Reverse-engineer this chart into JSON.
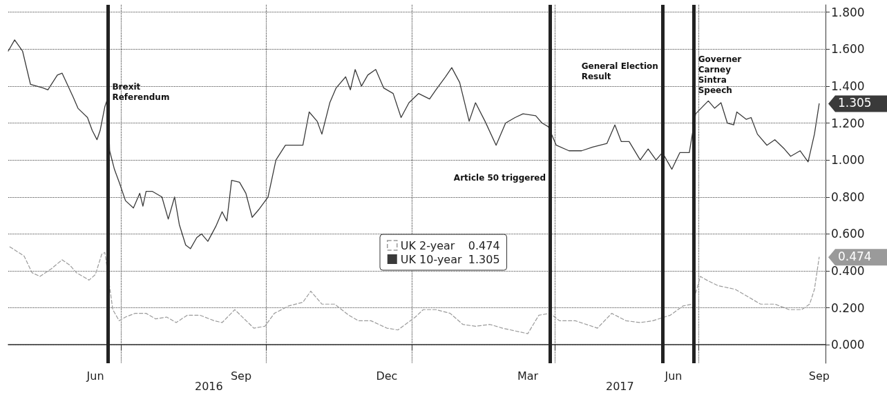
{
  "chart_data": {
    "type": "line",
    "annotations": [
      "2016",
      "2017"
    ],
    "xlim": [
      "2016-04-21",
      "2017-09-19"
    ],
    "xticks": [
      {
        "value": "2016-06-15",
        "label": "Jun"
      },
      {
        "value": "2016-07-01",
        "label": null
      },
      {
        "value": "2016-09-15",
        "label": "Sep"
      },
      {
        "value": "2016-10-01",
        "label": null
      },
      {
        "value": "2016-12-16",
        "label": "Dec"
      },
      {
        "value": "2017-01-01",
        "label": null
      },
      {
        "value": "2017-03-15",
        "label": "Mar"
      },
      {
        "value": "2017-04-01",
        "label": null
      },
      {
        "value": "2017-06-15",
        "label": "Jun"
      },
      {
        "value": "2017-07-01",
        "label": null
      },
      {
        "value": "2017-09-15",
        "label": "Sep"
      }
    ],
    "ylim": [
      -0.1,
      1.84
    ],
    "yticks": [
      {
        "value": 0,
        "label": "0.000"
      },
      {
        "value": 0.2,
        "label": "0.200"
      },
      {
        "value": 0.4,
        "label": "0.400"
      },
      {
        "value": 0.6,
        "label": "0.600"
      },
      {
        "value": 0.8,
        "label": "0.800"
      },
      {
        "value": 1,
        "label": "1.000"
      },
      {
        "value": 1.2,
        "label": "1.200"
      },
      {
        "value": 1.4,
        "label": "1.400"
      },
      {
        "value": 1.6,
        "label": "1.600"
      },
      {
        "value": 1.8,
        "label": "1.800"
      }
    ],
    "grid": true,
    "legend": "center",
    "marker": "none",
    "ref_lines": [
      {
        "axis": "x",
        "value": "2016-06-23",
        "label": "Brexit\nReferendum",
        "color": "#222222"
      },
      {
        "axis": "x",
        "value": "2017-03-29",
        "label": "Article 50 triggered",
        "color": "#222222"
      },
      {
        "axis": "x",
        "value": "2017-06-08",
        "label": "General Election\nResult",
        "color": "#222222"
      },
      {
        "axis": "x",
        "value": "2017-06-28",
        "label": "Governer\nCarney\nSintra\nSpeech",
        "color": "#222222"
      }
    ],
    "series": [
      {
        "name": "UK 2-year",
        "color": "#9a9a9a",
        "line_style": "dashed",
        "x": [
          "2016-04-22",
          "2016-05-01",
          "2016-05-06",
          "2016-05-11",
          "2016-05-18",
          "2016-05-25",
          "2016-05-30",
          "2016-06-03",
          "2016-06-07",
          "2016-06-11",
          "2016-06-15",
          "2016-06-19",
          "2016-06-21",
          "2016-06-26",
          "2016-06-30",
          "2016-07-04",
          "2016-07-10",
          "2016-07-17",
          "2016-07-23",
          "2016-07-30",
          "2016-08-05",
          "2016-08-12",
          "2016-08-20",
          "2016-08-29",
          "2016-09-03",
          "2016-09-11",
          "2016-09-17",
          "2016-09-23",
          "2016-09-30",
          "2016-10-06",
          "2016-10-15",
          "2016-10-24",
          "2016-10-29",
          "2016-11-05",
          "2016-11-13",
          "2016-11-22",
          "2016-11-28",
          "2016-12-06",
          "2016-12-16",
          "2016-12-23",
          "2017-01-03",
          "2017-01-08",
          "2017-01-16",
          "2017-01-25",
          "2017-02-02",
          "2017-02-10",
          "2017-02-19",
          "2017-02-27",
          "2017-03-15",
          "2017-03-22",
          "2017-03-29",
          "2017-04-04",
          "2017-04-14",
          "2017-04-28",
          "2017-05-07",
          "2017-05-16",
          "2017-05-25",
          "2017-06-02",
          "2017-06-13",
          "2017-06-21",
          "2017-06-27",
          "2017-07-02",
          "2017-07-06",
          "2017-07-13",
          "2017-07-24",
          "2017-08-01",
          "2017-08-09",
          "2017-08-18",
          "2017-08-27",
          "2017-09-04",
          "2017-09-09",
          "2017-09-12",
          "2017-09-15"
        ],
        "values": [
          0.53,
          0.48,
          0.39,
          0.37,
          0.41,
          0.46,
          0.43,
          0.39,
          0.37,
          0.35,
          0.38,
          0.49,
          0.5,
          0.19,
          0.13,
          0.15,
          0.17,
          0.17,
          0.14,
          0.15,
          0.12,
          0.16,
          0.16,
          0.13,
          0.12,
          0.19,
          0.14,
          0.09,
          0.1,
          0.17,
          0.21,
          0.23,
          0.29,
          0.22,
          0.22,
          0.16,
          0.13,
          0.13,
          0.09,
          0.08,
          0.15,
          0.19,
          0.19,
          0.17,
          0.11,
          0.1,
          0.11,
          0.09,
          0.06,
          0.16,
          0.17,
          0.13,
          0.13,
          0.09,
          0.17,
          0.13,
          0.12,
          0.13,
          0.16,
          0.21,
          0.22,
          0.37,
          0.35,
          0.32,
          0.3,
          0.26,
          0.22,
          0.22,
          0.19,
          0.19,
          0.22,
          0.3,
          0.474
        ],
        "value_labels": [
          null,
          null,
          null,
          null,
          null,
          null,
          null,
          null,
          null,
          null,
          null,
          null,
          null,
          null,
          null,
          null,
          null,
          null,
          null,
          null,
          null,
          null,
          null,
          null,
          null,
          null,
          null,
          null,
          null,
          null,
          null,
          null,
          null,
          null,
          null,
          null,
          null,
          null,
          null,
          null,
          null,
          null,
          null,
          null,
          null,
          null,
          null,
          null,
          null,
          null,
          null,
          null,
          null,
          null,
          null,
          null,
          null,
          null,
          null,
          null,
          null,
          null,
          null,
          null,
          null,
          null,
          null,
          null,
          null,
          null,
          null,
          null,
          "0.474"
        ]
      },
      {
        "name": "UK 10-year",
        "color": "#3a3a3a",
        "line_style": "solid",
        "x": [
          "2016-04-21",
          "2016-04-25",
          "2016-04-30",
          "2016-05-05",
          "2016-05-13",
          "2016-05-16",
          "2016-05-22",
          "2016-05-25",
          "2016-06-01",
          "2016-06-04",
          "2016-06-10",
          "2016-06-13",
          "2016-06-16",
          "2016-06-18",
          "2016-06-21",
          "2016-06-23",
          "2016-06-24",
          "2016-06-27",
          "2016-06-30",
          "2016-07-04",
          "2016-07-09",
          "2016-07-13",
          "2016-07-15",
          "2016-07-17",
          "2016-07-21",
          "2016-07-27",
          "2016-07-31",
          "2016-08-04",
          "2016-08-07",
          "2016-08-11",
          "2016-08-14",
          "2016-08-18",
          "2016-08-21",
          "2016-08-25",
          "2016-08-30",
          "2016-09-03",
          "2016-09-06",
          "2016-09-09",
          "2016-09-14",
          "2016-09-18",
          "2016-09-22",
          "2016-09-26",
          "2016-10-02",
          "2016-10-07",
          "2016-10-13",
          "2016-10-20",
          "2016-10-24",
          "2016-10-28",
          "2016-11-02",
          "2016-11-05",
          "2016-11-10",
          "2016-11-14",
          "2016-11-20",
          "2016-11-23",
          "2016-11-26",
          "2016-11-30",
          "2016-12-04",
          "2016-12-09",
          "2016-12-14",
          "2016-12-20",
          "2016-12-25",
          "2016-12-30",
          "2017-01-05",
          "2017-01-12",
          "2017-01-16",
          "2017-01-22",
          "2017-01-26",
          "2017-01-31",
          "2017-02-06",
          "2017-02-10",
          "2017-02-16",
          "2017-02-23",
          "2017-03-01",
          "2017-03-07",
          "2017-03-12",
          "2017-03-20",
          "2017-03-24",
          "2017-03-28",
          "2017-04-02",
          "2017-04-10",
          "2017-04-18",
          "2017-04-25",
          "2017-05-04",
          "2017-05-09",
          "2017-05-13",
          "2017-05-18",
          "2017-05-25",
          "2017-05-30",
          "2017-06-04",
          "2017-06-08",
          "2017-06-14",
          "2017-06-19",
          "2017-06-25",
          "2017-06-29",
          "2017-07-07",
          "2017-07-11",
          "2017-07-15",
          "2017-07-19",
          "2017-07-23",
          "2017-07-25",
          "2017-07-31",
          "2017-08-03",
          "2017-08-07",
          "2017-08-13",
          "2017-08-18",
          "2017-08-24",
          "2017-08-28",
          "2017-09-03",
          "2017-09-08",
          "2017-09-12",
          "2017-09-15"
        ],
        "values": [
          1.59,
          1.65,
          1.59,
          1.41,
          1.39,
          1.38,
          1.46,
          1.47,
          1.34,
          1.28,
          1.23,
          1.16,
          1.11,
          1.16,
          1.29,
          1.34,
          1.05,
          0.95,
          0.88,
          0.78,
          0.74,
          0.82,
          0.75,
          0.83,
          0.83,
          0.8,
          0.68,
          0.8,
          0.65,
          0.54,
          0.52,
          0.58,
          0.6,
          0.56,
          0.64,
          0.72,
          0.67,
          0.89,
          0.88,
          0.82,
          0.69,
          0.73,
          0.8,
          1.0,
          1.08,
          1.08,
          1.08,
          1.26,
          1.21,
          1.14,
          1.31,
          1.39,
          1.45,
          1.38,
          1.49,
          1.4,
          1.46,
          1.49,
          1.39,
          1.36,
          1.23,
          1.31,
          1.36,
          1.33,
          1.38,
          1.45,
          1.5,
          1.42,
          1.21,
          1.31,
          1.21,
          1.08,
          1.2,
          1.23,
          1.25,
          1.24,
          1.2,
          1.18,
          1.08,
          1.05,
          1.05,
          1.07,
          1.09,
          1.19,
          1.1,
          1.1,
          1.0,
          1.06,
          1.0,
          1.04,
          0.95,
          1.04,
          1.04,
          1.25,
          1.32,
          1.28,
          1.31,
          1.2,
          1.19,
          1.26,
          1.22,
          1.23,
          1.14,
          1.08,
          1.11,
          1.06,
          1.02,
          1.05,
          0.99,
          1.14,
          1.305
        ],
        "value_labels": [
          null,
          null,
          null,
          null,
          null,
          null,
          null,
          null,
          null,
          null,
          null,
          null,
          null,
          null,
          null,
          null,
          null,
          null,
          null,
          null,
          null,
          null,
          null,
          null,
          null,
          null,
          null,
          null,
          null,
          null,
          null,
          null,
          null,
          null,
          null,
          null,
          null,
          null,
          null,
          null,
          null,
          null,
          null,
          null,
          null,
          null,
          null,
          null,
          null,
          null,
          null,
          null,
          null,
          null,
          null,
          null,
          null,
          null,
          null,
          null,
          null,
          null,
          null,
          null,
          null,
          null,
          null,
          null,
          null,
          null,
          null,
          null,
          null,
          null,
          null,
          null,
          null,
          null,
          null,
          null,
          null,
          null,
          null,
          null,
          null,
          null,
          null,
          null,
          null,
          null,
          null,
          null,
          null,
          null,
          null,
          null,
          null,
          null,
          null,
          null,
          null,
          null,
          null,
          null,
          null,
          null,
          null,
          null,
          null,
          null,
          "1.305"
        ]
      }
    ]
  }
}
